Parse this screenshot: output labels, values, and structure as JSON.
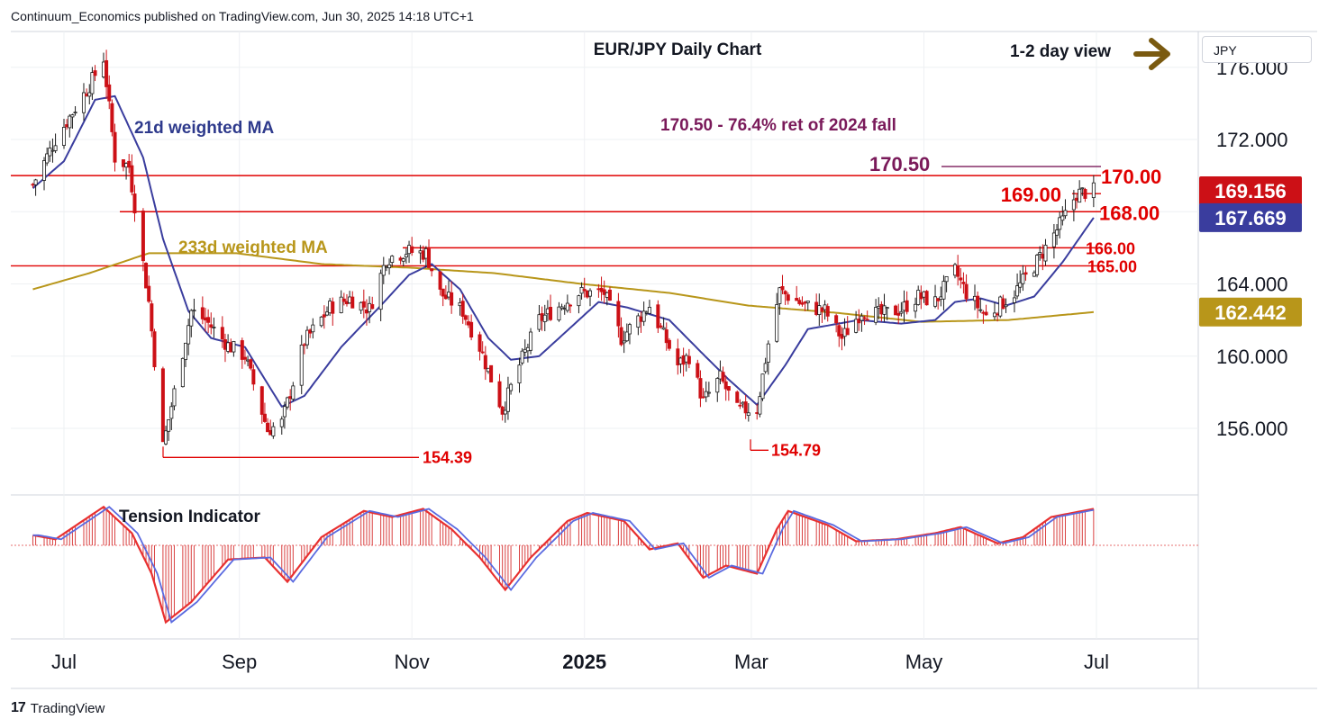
{
  "header": {
    "publisher_line": "Continuum_Economics published on TradingView.com, Jun 30, 2025 14:18 UTC+1"
  },
  "currency": "JPY",
  "branding": {
    "logo_glyph": "17",
    "name": "TradingView"
  },
  "chart_data": {
    "type": "candlestick",
    "title": "EUR/JPY Daily Chart",
    "view": "1-2 day view",
    "view_arrow": "right-arrow-icon",
    "y_ticks": [
      "176.000",
      "172.000",
      "164.000",
      "160.000",
      "156.000"
    ],
    "x_ticks": [
      {
        "label": "Jul",
        "bold": false
      },
      {
        "label": "Sep",
        "bold": false
      },
      {
        "label": "Nov",
        "bold": false
      },
      {
        "label": "2025",
        "bold": true
      },
      {
        "label": "Mar",
        "bold": false
      },
      {
        "label": "May",
        "bold": false
      },
      {
        "label": "Jul",
        "bold": false
      }
    ],
    "ma_labels": {
      "fast": "21d weighted MA",
      "slow": "233d weighted MA"
    },
    "retracement_note": "170.50 - 76.4% ret of 2024 fall",
    "levels": [
      {
        "value": 170.5,
        "label": "170.50"
      },
      {
        "value": 170.0,
        "label": "170.00"
      },
      {
        "value": 169.0,
        "label": "169.00"
      },
      {
        "value": 168.0,
        "label": "168.00"
      },
      {
        "value": 166.0,
        "label": "166.00"
      },
      {
        "value": 165.0,
        "label": "165.00"
      }
    ],
    "lows": [
      {
        "value": 154.39,
        "label": "154.39"
      },
      {
        "value": 154.79,
        "label": "154.79"
      }
    ],
    "price_badges": [
      {
        "value": "169.156",
        "series": "price",
        "color": "#cc1016"
      },
      {
        "value": "167.669",
        "series": "21d weighted MA",
        "color": "#3a3d9e"
      },
      {
        "value": "162.442",
        "series": "233d weighted MA",
        "color": "#b8961a"
      }
    ],
    "indicator_label": "Tension Indicator",
    "colors": {
      "up": "#1a1a1a",
      "down": "#cc1016",
      "ma_fast": "#3a3d9e",
      "ma_slow": "#b8961a",
      "level": "#e00000",
      "note": "#7a1a5a",
      "arrow": "#7a5a10"
    },
    "price_anchors": [
      [
        "2024-06-20",
        169.5
      ],
      [
        "2024-06-28",
        172.0
      ],
      [
        "2024-07-10",
        175.0
      ],
      [
        "2024-07-15",
        176.5
      ],
      [
        "2024-07-19",
        171.0
      ],
      [
        "2024-07-24",
        170.5
      ],
      [
        "2024-07-31",
        163.0
      ],
      [
        "2024-08-05",
        155.0
      ],
      [
        "2024-08-15",
        162.5
      ],
      [
        "2024-08-20",
        162.0
      ],
      [
        "2024-08-28",
        160.6
      ],
      [
        "2024-09-03",
        160.0
      ],
      [
        "2024-09-11",
        155.9
      ],
      [
        "2024-09-16",
        156.3
      ],
      [
        "2024-09-24",
        160.8
      ],
      [
        "2024-10-03",
        162.7
      ],
      [
        "2024-10-10",
        163.2
      ],
      [
        "2024-10-17",
        162.6
      ],
      [
        "2024-10-23",
        165.4
      ],
      [
        "2024-10-30",
        165.8
      ],
      [
        "2024-11-06",
        165.7
      ],
      [
        "2024-11-11",
        163.5
      ],
      [
        "2024-11-19",
        162.5
      ],
      [
        "2024-11-25",
        160.5
      ],
      [
        "2024-12-03",
        157.0
      ],
      [
        "2024-12-09",
        159.5
      ],
      [
        "2024-12-16",
        162.0
      ],
      [
        "2024-12-30",
        163.5
      ],
      [
        "2025-01-08",
        163.5
      ],
      [
        "2025-01-14",
        161.0
      ],
      [
        "2025-01-24",
        162.8
      ],
      [
        "2025-02-03",
        159.5
      ],
      [
        "2025-02-07",
        160.0
      ],
      [
        "2025-02-12",
        157.5
      ],
      [
        "2025-02-18",
        158.8
      ],
      [
        "2025-02-24",
        157.0
      ],
      [
        "2025-03-03",
        157.1
      ],
      [
        "2025-03-07",
        160.7
      ],
      [
        "2025-03-11",
        163.6
      ],
      [
        "2025-03-20",
        162.8
      ],
      [
        "2025-03-27",
        162.5
      ],
      [
        "2025-04-02",
        161.0
      ],
      [
        "2025-04-09",
        162.5
      ],
      [
        "2025-04-16",
        162.3
      ],
      [
        "2025-04-23",
        162.6
      ],
      [
        "2025-04-29",
        163.3
      ],
      [
        "2025-05-05",
        163.0
      ],
      [
        "2025-05-12",
        164.7
      ],
      [
        "2025-05-16",
        163.5
      ],
      [
        "2025-05-23",
        162.2
      ],
      [
        "2025-06-02",
        163.5
      ],
      [
        "2025-06-09",
        165.0
      ],
      [
        "2025-06-13",
        166.0
      ],
      [
        "2025-06-19",
        167.5
      ],
      [
        "2025-06-24",
        169.0
      ],
      [
        "2025-06-30",
        169.16
      ]
    ],
    "ma21_anchors": [
      [
        "2024-06-20",
        169.3
      ],
      [
        "2024-07-01",
        170.8
      ],
      [
        "2024-07-12",
        174.2
      ],
      [
        "2024-07-19",
        174.4
      ],
      [
        "2024-07-29",
        171.0
      ],
      [
        "2024-08-05",
        166.5
      ],
      [
        "2024-08-14",
        162.5
      ],
      [
        "2024-08-22",
        161.0
      ],
      [
        "2024-09-03",
        160.5
      ],
      [
        "2024-09-16",
        157.2
      ],
      [
        "2024-09-24",
        157.8
      ],
      [
        "2024-10-07",
        160.5
      ],
      [
        "2024-10-21",
        162.8
      ],
      [
        "2024-10-31",
        164.5
      ],
      [
        "2024-11-08",
        165.1
      ],
      [
        "2024-11-18",
        163.7
      ],
      [
        "2024-11-28",
        161.0
      ],
      [
        "2024-12-06",
        159.8
      ],
      [
        "2024-12-16",
        160.0
      ],
      [
        "2025-01-06",
        163.0
      ],
      [
        "2025-01-16",
        162.7
      ],
      [
        "2025-01-31",
        162.0
      ],
      [
        "2025-02-12",
        160.1
      ],
      [
        "2025-02-21",
        158.7
      ],
      [
        "2025-03-03",
        157.3
      ],
      [
        "2025-03-13",
        159.5
      ],
      [
        "2025-03-21",
        161.5
      ],
      [
        "2025-04-08",
        162.0
      ],
      [
        "2025-04-23",
        161.8
      ],
      [
        "2025-05-05",
        162.0
      ],
      [
        "2025-05-12",
        163.0
      ],
      [
        "2025-05-21",
        163.2
      ],
      [
        "2025-05-30",
        162.8
      ],
      [
        "2025-06-09",
        163.3
      ],
      [
        "2025-06-19",
        165.2
      ],
      [
        "2025-06-30",
        167.67
      ]
    ],
    "ma233_anchors": [
      [
        "2024-06-20",
        163.7
      ],
      [
        "2024-07-10",
        164.6
      ],
      [
        "2024-07-31",
        165.7
      ],
      [
        "2024-08-31",
        165.7
      ],
      [
        "2024-09-30",
        165.1
      ],
      [
        "2024-10-31",
        164.9
      ],
      [
        "2024-11-30",
        164.6
      ],
      [
        "2024-12-31",
        164.0
      ],
      [
        "2025-01-31",
        163.5
      ],
      [
        "2025-02-28",
        162.8
      ],
      [
        "2025-03-31",
        162.4
      ],
      [
        "2025-04-30",
        161.9
      ],
      [
        "2025-05-31",
        162.0
      ],
      [
        "2025-06-30",
        162.44
      ]
    ],
    "tension_anchors": [
      [
        "2024-06-20",
        0.25
      ],
      [
        "2024-06-28",
        0.15
      ],
      [
        "2024-07-15",
        0.95
      ],
      [
        "2024-07-25",
        0.3
      ],
      [
        "2024-08-01",
        -0.7
      ],
      [
        "2024-08-06",
        -1.9
      ],
      [
        "2024-08-15",
        -1.4
      ],
      [
        "2024-08-28",
        -0.35
      ],
      [
        "2024-09-10",
        -0.3
      ],
      [
        "2024-09-18",
        -0.9
      ],
      [
        "2024-09-30",
        0.2
      ],
      [
        "2024-10-15",
        0.85
      ],
      [
        "2024-10-25",
        0.7
      ],
      [
        "2024-11-05",
        0.9
      ],
      [
        "2024-11-15",
        0.4
      ],
      [
        "2024-11-25",
        -0.3
      ],
      [
        "2024-12-04",
        -1.1
      ],
      [
        "2024-12-13",
        -0.3
      ],
      [
        "2024-12-26",
        0.6
      ],
      [
        "2025-01-02",
        0.8
      ],
      [
        "2025-01-15",
        0.6
      ],
      [
        "2025-01-24",
        -0.1
      ],
      [
        "2025-02-03",
        0.05
      ],
      [
        "2025-02-12",
        -0.8
      ],
      [
        "2025-02-20",
        -0.5
      ],
      [
        "2025-03-03",
        -0.7
      ],
      [
        "2025-03-10",
        0.4
      ],
      [
        "2025-03-14",
        0.85
      ],
      [
        "2025-03-28",
        0.5
      ],
      [
        "2025-04-07",
        0.1
      ],
      [
        "2025-04-21",
        0.15
      ],
      [
        "2025-05-05",
        0.3
      ],
      [
        "2025-05-14",
        0.45
      ],
      [
        "2025-05-27",
        0.05
      ],
      [
        "2025-06-05",
        0.2
      ],
      [
        "2025-06-15",
        0.7
      ],
      [
        "2025-06-30",
        0.9
      ]
    ]
  }
}
